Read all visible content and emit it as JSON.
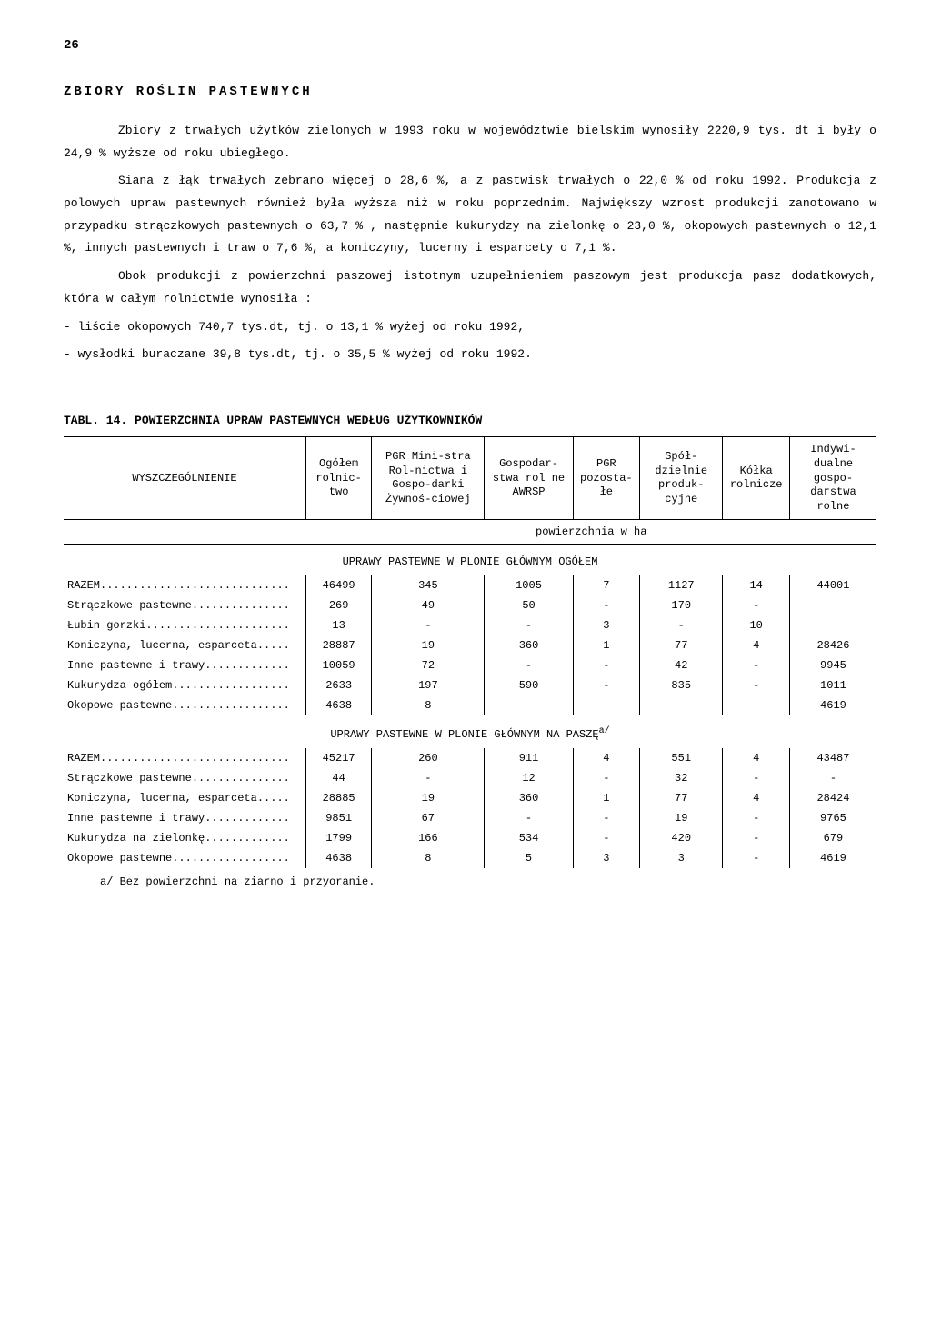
{
  "pageNumber": "26",
  "title": "ZBIORY ROŚLIN PASTEWNYCH",
  "para1": "Zbiory z trwałych użytków zielonych w 1993 roku w województwie bielskim wynosiły 2220,9 tys. dt i były o 24,9 % wyższe od roku ubiegłego.",
  "para2": "Siana z łąk trwałych zebrano więcej o 28,6 %, a z pastwisk trwałych o 22,0 % od roku 1992. Produkcja z polowych upraw pastewnych również była wyższa niż w roku poprzednim. Największy wzrost produkcji zanotowano w przypadku strączkowych pastewnych o 63,7 % , następnie kukurydzy na zielonkę o 23,0 %, okopowych pastewnych o 12,1 %, innych pastewnych i traw o 7,6 %, a koniczyny, lucerny i esparcety o 7,1 %.",
  "para3": "Obok produkcji z powierzchni paszowej istotnym uzupełnieniem paszowym jest produkcja pasz dodatkowych, która w całym rolnictwie wynosiła :",
  "bullet1": "- liście okopowych 740,7 tys.dt, tj. o 13,1 % wyżej od roku 1992,",
  "bullet2": "- wysłodki buraczane 39,8 tys.dt, tj. o 35,5 % wyżej od roku 1992.",
  "tableTitle": "TABL.  14.  POWIERZCHNIA UPRAW PASTEWNYCH WEDŁUG UŻYTKOWNIKÓW",
  "headers": {
    "c0": "WYSZCZEGÓLNIENIE",
    "c1": "Ogółem rolnic-two",
    "c2": "PGR Mini-stra Rol-nictwa i Gospo-darki Żywnoś-ciowej",
    "c3": "Gospodar-stwa rol ne AWRSP",
    "c4": "PGR pozosta-łe",
    "c5": "Spół-dzielnie produk-cyjne",
    "c6": "Kółka rolnicze",
    "c7": "Indywi-dualne gospo-darstwa rolne"
  },
  "subHeader": "powierzchnia w ha",
  "section1": "UPRAWY PASTEWNE W PLONIE GŁÓWNYM OGÓŁEM",
  "section2": "UPRAWY PASTEWNE W PLONIE GŁÓWNYM NA PASZĘ",
  "section2sup": "a/",
  "rows1": [
    {
      "label": "RAZEM",
      "v": [
        "46499",
        "345",
        "1005",
        "7",
        "1127",
        "14",
        "44001"
      ]
    },
    {
      "label": "Strączkowe pastewne",
      "v": [
        "269",
        "49",
        "50",
        "-",
        "170",
        "-",
        ""
      ]
    },
    {
      "label": "Łubin gorzki",
      "v": [
        "13",
        "-",
        "-",
        "3",
        "-",
        "10",
        ""
      ]
    },
    {
      "label": "Koniczyna, lucerna, esparceta",
      "v": [
        "28887",
        "19",
        "360",
        "1",
        "77",
        "4",
        "28426"
      ]
    },
    {
      "label": "Inne pastewne i trawy",
      "v": [
        "10059",
        "72",
        "-",
        "-",
        "42",
        "-",
        "9945"
      ]
    },
    {
      "label": "Kukurydza ogółem",
      "v": [
        "2633",
        "197",
        "590",
        "-",
        "835",
        "-",
        "1011"
      ]
    },
    {
      "label": "Okopowe pastewne",
      "v": [
        "4638",
        "8",
        "",
        "",
        "",
        "",
        "4619"
      ]
    }
  ],
  "rows2": [
    {
      "label": "RAZEM",
      "v": [
        "45217",
        "260",
        "911",
        "4",
        "551",
        "4",
        "43487"
      ]
    },
    {
      "label": "Strączkowe pastewne",
      "v": [
        "44",
        "-",
        "12",
        "-",
        "32",
        "-",
        "-"
      ]
    },
    {
      "label": "Koniczyna, lucerna, esparceta",
      "v": [
        "28885",
        "19",
        "360",
        "1",
        "77",
        "4",
        "28424"
      ]
    },
    {
      "label": "Inne pastewne i trawy",
      "v": [
        "9851",
        "67",
        "-",
        "-",
        "19",
        "-",
        "9765"
      ]
    },
    {
      "label": "Kukurydza na zielonkę",
      "v": [
        "1799",
        "166",
        "534",
        "-",
        "420",
        "-",
        "679"
      ]
    },
    {
      "label": "Okopowe pastewne",
      "v": [
        "4638",
        "8",
        "5",
        "3",
        "3",
        "-",
        "4619"
      ]
    }
  ],
  "footnote": "a/ Bez powierzchni na ziarno i przyoranie."
}
